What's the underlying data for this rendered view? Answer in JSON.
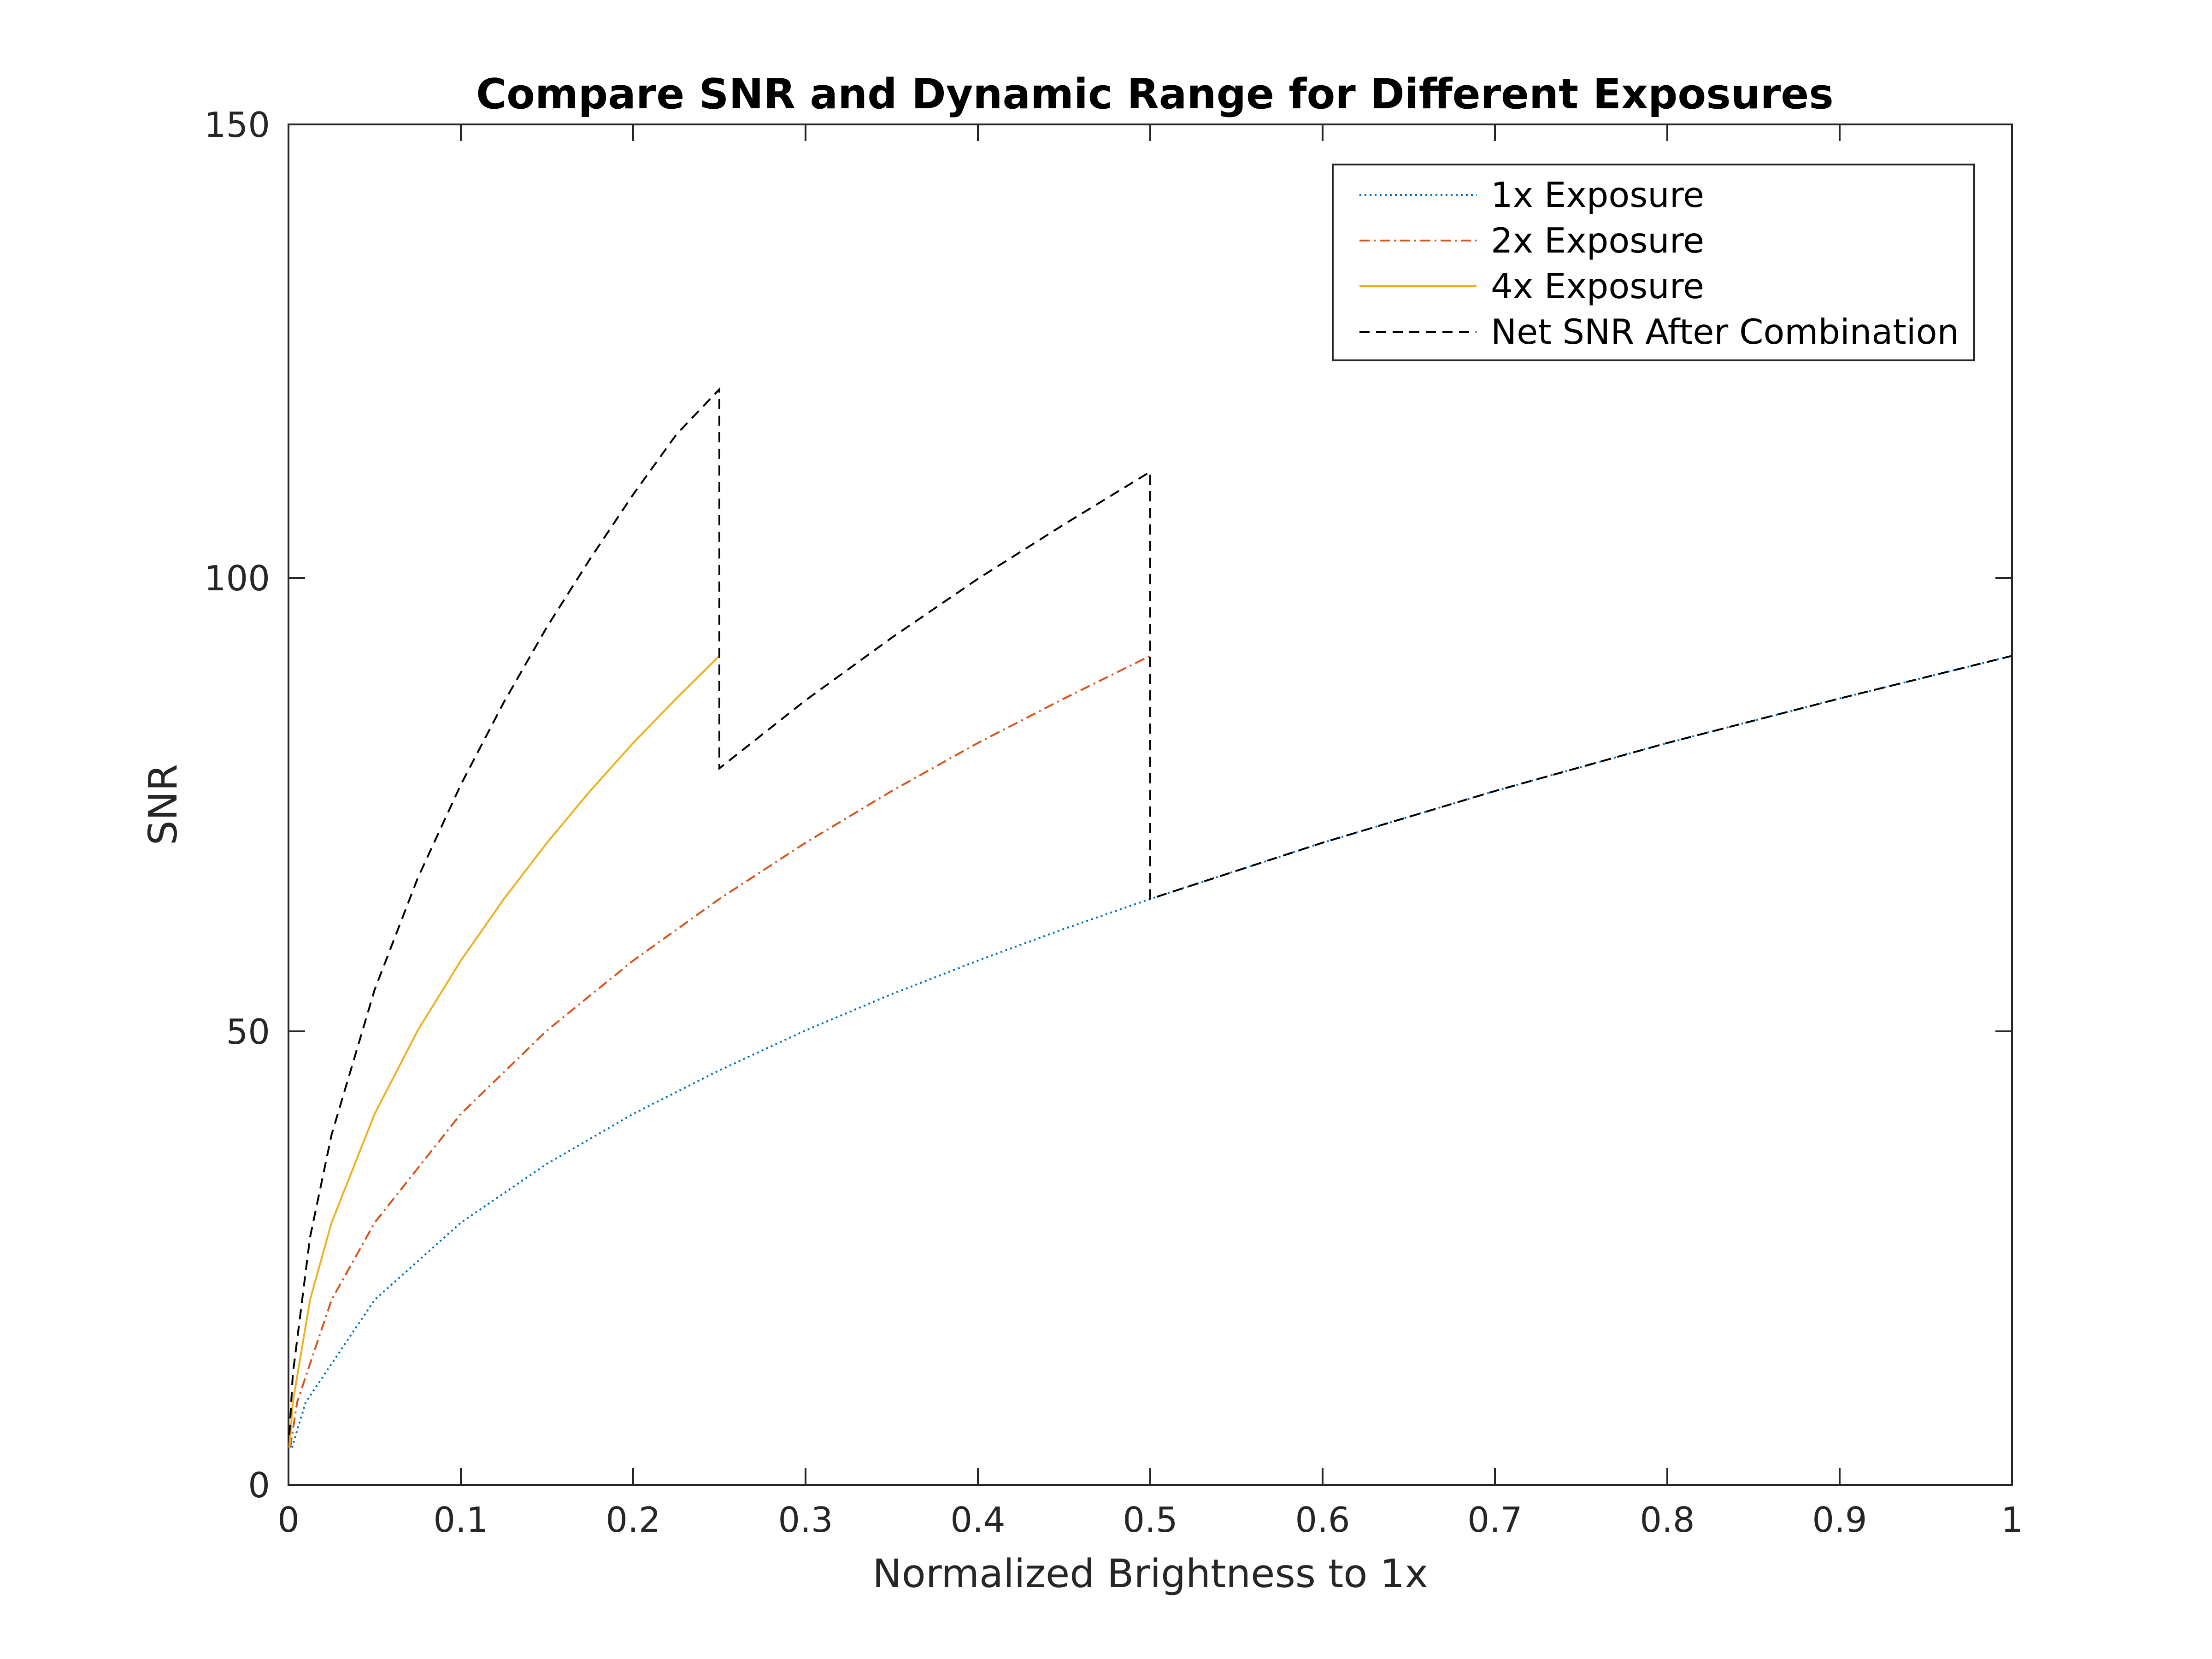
{
  "chart_data": {
    "type": "line",
    "title": "Compare SNR and Dynamic Range for Different Exposures",
    "xlabel": "Normalized Brightness to 1x",
    "ylabel": "SNR",
    "xlim": [
      0,
      1
    ],
    "ylim": [
      0,
      150
    ],
    "x_ticks": [
      "0",
      "0.1",
      "0.2",
      "0.3",
      "0.4",
      "0.5",
      "0.6",
      "0.7",
      "0.8",
      "0.9",
      "1"
    ],
    "y_ticks": [
      "0",
      "50",
      "100",
      "150"
    ],
    "grid": false,
    "legend_position": "top-right",
    "series": [
      {
        "name": "1x Exposure",
        "color": "#0072BD",
        "line_style": "dotted",
        "x": [
          0.002,
          0.01,
          0.05,
          0.1,
          0.15,
          0.2,
          0.25,
          0.3,
          0.35,
          0.4,
          0.45,
          0.5,
          0.6,
          0.7,
          0.8,
          0.9,
          1.0
        ],
        "y": [
          4.1,
          9.1,
          20.4,
          28.9,
          35.4,
          40.9,
          45.7,
          50.1,
          54.1,
          57.8,
          61.3,
          64.6,
          70.8,
          76.5,
          81.8,
          86.7,
          91.4
        ]
      },
      {
        "name": "2x Exposure",
        "color": "#D95319",
        "line_style": "dash-dot",
        "x": [
          0.001,
          0.005,
          0.025,
          0.05,
          0.1,
          0.15,
          0.2,
          0.25,
          0.3,
          0.35,
          0.4,
          0.45,
          0.5
        ],
        "y": [
          4.1,
          9.1,
          20.4,
          28.9,
          40.9,
          50.1,
          57.8,
          64.6,
          70.8,
          76.5,
          81.8,
          86.7,
          91.4
        ]
      },
      {
        "name": "4x Exposure",
        "color": "#EDB120",
        "line_style": "solid",
        "x": [
          0.0005,
          0.0025,
          0.0125,
          0.025,
          0.05,
          0.075,
          0.1,
          0.125,
          0.15,
          0.175,
          0.2,
          0.225,
          0.25
        ],
        "y": [
          4.1,
          9.1,
          20.4,
          28.9,
          40.9,
          50.1,
          57.8,
          64.6,
          70.8,
          76.5,
          81.8,
          86.7,
          91.4
        ]
      },
      {
        "name": "Net SNR After Combination",
        "color": "#000000",
        "line_style": "dashed",
        "x": [
          0.0005,
          0.0025,
          0.0125,
          0.025,
          0.05,
          0.075,
          0.1,
          0.125,
          0.15,
          0.175,
          0.2,
          0.225,
          0.25,
          0.25,
          0.3,
          0.35,
          0.4,
          0.45,
          0.5,
          0.5,
          0.6,
          0.7,
          0.8,
          0.9,
          1.0
        ],
        "y": [
          5.5,
          12.2,
          27.3,
          38.6,
          54.6,
          66.9,
          77.2,
          86.3,
          94.6,
          102.1,
          109.2,
          115.8,
          120.8,
          79.0,
          86.5,
          93.4,
          99.9,
          105.9,
          111.7,
          64.6,
          70.8,
          76.5,
          81.8,
          86.7,
          91.4
        ]
      }
    ]
  }
}
